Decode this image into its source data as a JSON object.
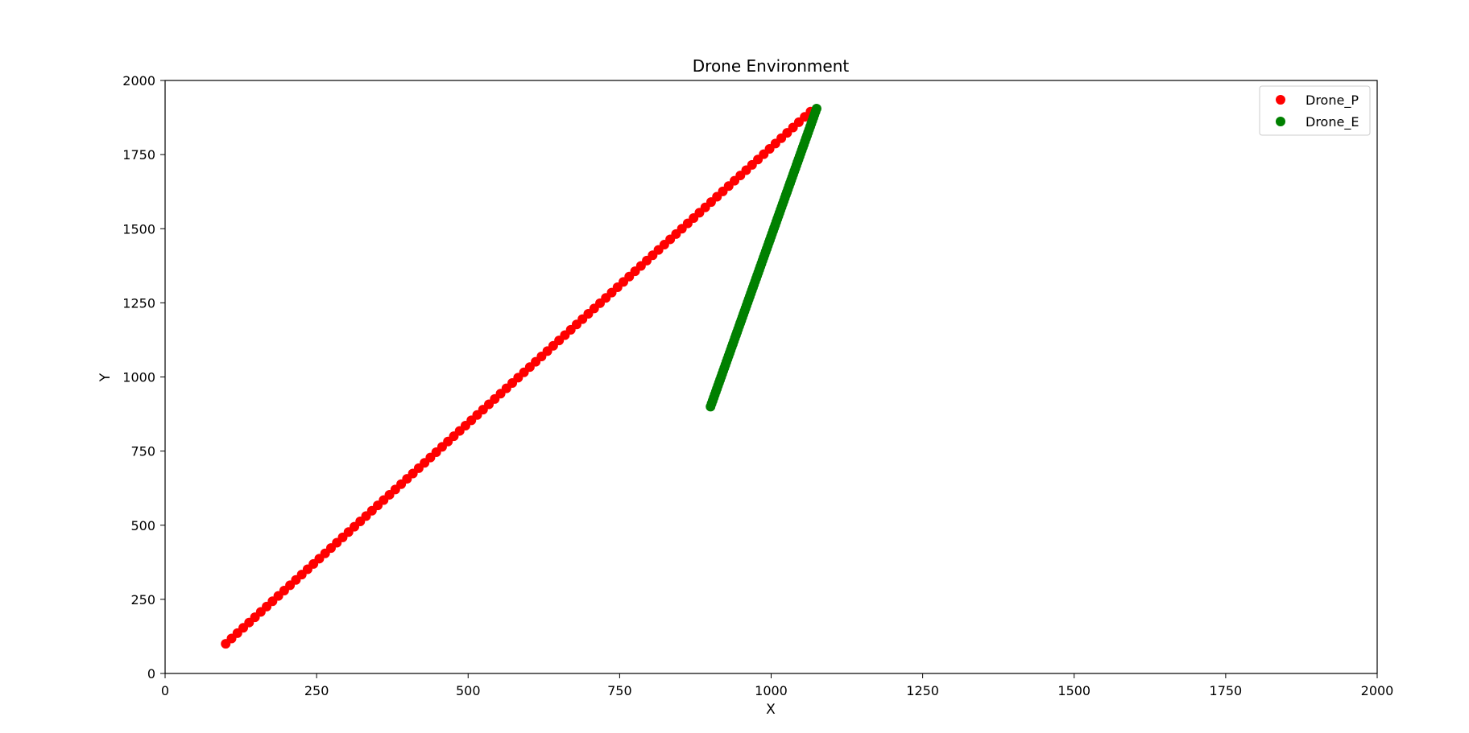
{
  "chart_data": {
    "type": "scatter",
    "title": "Drone Environment",
    "xlabel": "X",
    "ylabel": "Y",
    "xlim": [
      0,
      2000
    ],
    "ylim": [
      0,
      2000
    ],
    "xticks": [
      0,
      250,
      500,
      750,
      1000,
      1250,
      1500,
      1750,
      2000
    ],
    "yticks": [
      0,
      250,
      500,
      750,
      1000,
      1250,
      1500,
      1750,
      2000
    ],
    "grid": false,
    "legend_position": "top-right",
    "series": [
      {
        "name": "Drone_P",
        "color": "#ff0000",
        "start": [
          100,
          100
        ],
        "end": [
          1065,
          1895
        ],
        "count": 101
      },
      {
        "name": "Drone_E",
        "color": "#008000",
        "start": [
          900,
          900
        ],
        "end": [
          1075,
          1905
        ],
        "count": 101
      }
    ]
  }
}
